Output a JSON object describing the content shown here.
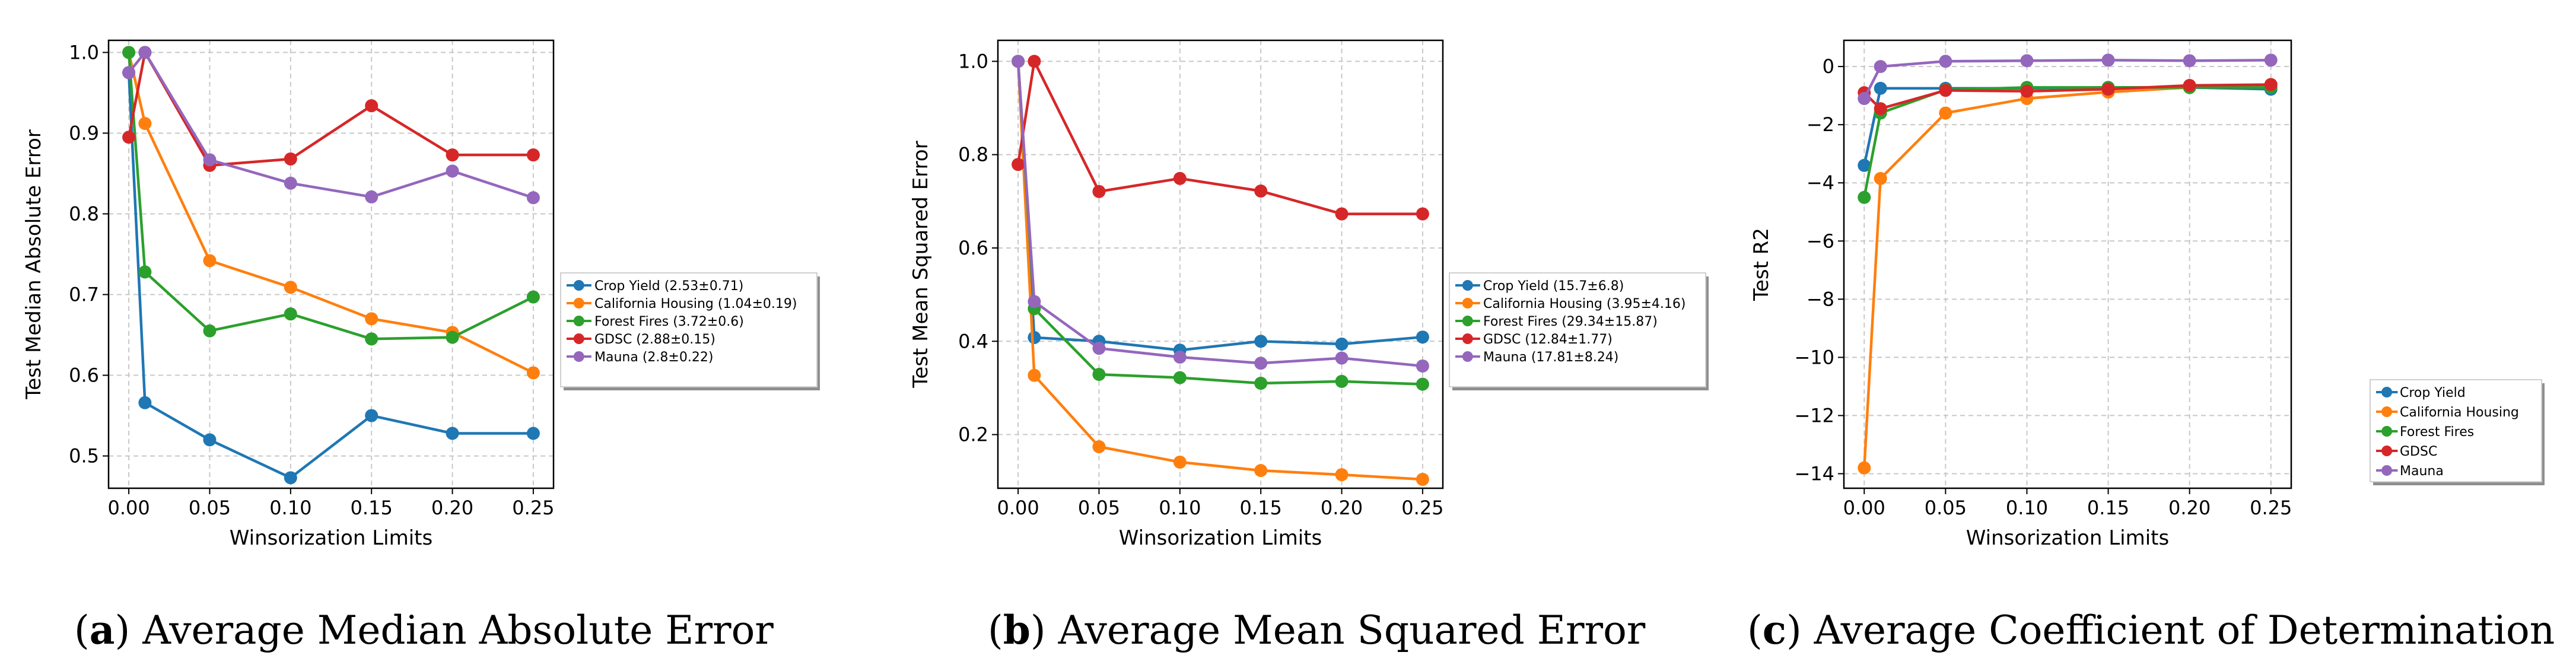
{
  "series_styles": [
    {
      "key": "crop",
      "color": "#1f77b4"
    },
    {
      "key": "housing",
      "color": "#ff7f0e"
    },
    {
      "key": "fires",
      "color": "#2ca02c"
    },
    {
      "key": "gdsc",
      "color": "#d62728"
    },
    {
      "key": "mauna",
      "color": "#9467bd"
    }
  ],
  "captions": [
    {
      "letter": "a",
      "text": "Average Median Absolute Error"
    },
    {
      "letter": "b",
      "text": "Average Mean Squared Error"
    },
    {
      "letter": "c",
      "text": "Average Coefficient of Determination"
    }
  ],
  "chart_data": [
    {
      "type": "line",
      "xlabel": "Winsorization Limits",
      "ylabel": "Test Median Absolute Error",
      "x": [
        0.0,
        0.01,
        0.05,
        0.1,
        0.15,
        0.2,
        0.25
      ],
      "xticks": [
        "0.00",
        "0.05",
        "0.10",
        "0.15",
        "0.20",
        "0.25"
      ],
      "xtick_values": [
        0.0,
        0.05,
        0.1,
        0.15,
        0.2,
        0.25
      ],
      "yticks": [
        "0.5",
        "0.6",
        "0.7",
        "0.8",
        "0.9",
        "1.0"
      ],
      "ytick_values": [
        0.5,
        0.6,
        0.7,
        0.8,
        0.9,
        1.0
      ],
      "xlim": [
        -0.0125,
        0.2625
      ],
      "ylim": [
        0.46,
        1.015
      ],
      "grid": true,
      "legend_location": "outside-right",
      "series": [
        {
          "name": "Crop Yield (2.53±0.71)",
          "values": [
            0.975,
            0.566,
            0.52,
            0.473,
            0.55,
            0.528,
            0.528
          ]
        },
        {
          "name": "California Housing (1.04±0.19)",
          "values": [
            1.0,
            0.912,
            0.742,
            0.709,
            0.67,
            0.653,
            0.603
          ]
        },
        {
          "name": "Forest Fires (3.72±0.6)",
          "values": [
            1.0,
            0.728,
            0.655,
            0.676,
            0.645,
            0.647,
            0.697
          ]
        },
        {
          "name": "GDSC (2.88±0.15)",
          "values": [
            0.895,
            1.0,
            0.86,
            0.868,
            0.934,
            0.873,
            0.873
          ]
        },
        {
          "name": "Mauna (2.8±0.22)",
          "values": [
            0.975,
            1.0,
            0.867,
            0.838,
            0.821,
            0.853,
            0.82
          ]
        }
      ]
    },
    {
      "type": "line",
      "xlabel": "Winsorization Limits",
      "ylabel": "Test Mean Squared Error",
      "x": [
        0.0,
        0.01,
        0.05,
        0.1,
        0.15,
        0.2,
        0.25
      ],
      "xticks": [
        "0.00",
        "0.05",
        "0.10",
        "0.15",
        "0.20",
        "0.25"
      ],
      "xtick_values": [
        0.0,
        0.05,
        0.1,
        0.15,
        0.2,
        0.25
      ],
      "yticks": [
        "0.2",
        "0.4",
        "0.6",
        "0.8",
        "1.0"
      ],
      "ytick_values": [
        0.2,
        0.4,
        0.6,
        0.8,
        1.0
      ],
      "xlim": [
        -0.0125,
        0.2625
      ],
      "ylim": [
        0.085,
        1.045
      ],
      "grid": true,
      "legend_location": "outside-right",
      "series": [
        {
          "name": "Crop Yield (15.7±6.8)",
          "values": [
            1.0,
            0.408,
            0.4,
            0.381,
            0.4,
            0.394,
            0.409
          ]
        },
        {
          "name": "California Housing (3.95±4.16)",
          "values": [
            1.0,
            0.327,
            0.174,
            0.141,
            0.123,
            0.114,
            0.104
          ]
        },
        {
          "name": "Forest Fires (29.34±15.87)",
          "values": [
            1.0,
            0.47,
            0.329,
            0.322,
            0.31,
            0.314,
            0.308
          ]
        },
        {
          "name": "GDSC (12.84±1.77)",
          "values": [
            0.779,
            1.0,
            0.721,
            0.749,
            0.722,
            0.673,
            0.673
          ]
        },
        {
          "name": "Mauna (17.81±8.24)",
          "values": [
            1.0,
            0.485,
            0.385,
            0.366,
            0.353,
            0.364,
            0.347
          ]
        }
      ]
    },
    {
      "type": "line",
      "xlabel": "Winsorization Limits",
      "ylabel": "Test R2",
      "x": [
        0.0,
        0.01,
        0.05,
        0.1,
        0.15,
        0.2,
        0.25
      ],
      "xticks": [
        "0.00",
        "0.05",
        "0.10",
        "0.15",
        "0.20",
        "0.25"
      ],
      "xtick_values": [
        0.0,
        0.05,
        0.1,
        0.15,
        0.2,
        0.25
      ],
      "yticks": [
        "0",
        "−2",
        "−4",
        "−6",
        "−8",
        "−10",
        "−12",
        "−14"
      ],
      "ytick_values": [
        0,
        -2,
        -4,
        -6,
        -8,
        -10,
        -12,
        -14
      ],
      "xlim": [
        -0.0125,
        0.2625
      ],
      "ylim": [
        -14.5,
        0.9
      ],
      "grid": true,
      "legend_location": "lower-right",
      "series": [
        {
          "name": "Crop Yield",
          "values": [
            -3.4,
            -0.75,
            -0.75,
            -0.75,
            -0.72,
            -0.72,
            -0.78
          ]
        },
        {
          "name": "California Housing",
          "values": [
            -13.8,
            -3.85,
            -1.6,
            -1.1,
            -0.88,
            -0.72,
            -0.62
          ]
        },
        {
          "name": "Forest Fires",
          "values": [
            -4.5,
            -1.6,
            -0.8,
            -0.72,
            -0.72,
            -0.72,
            -0.72
          ]
        },
        {
          "name": "GDSC",
          "values": [
            -0.9,
            -1.45,
            -0.82,
            -0.85,
            -0.78,
            -0.65,
            -0.62
          ]
        },
        {
          "name": "Mauna",
          "values": [
            -1.1,
            0.0,
            0.18,
            0.2,
            0.22,
            0.2,
            0.22
          ]
        }
      ]
    }
  ]
}
